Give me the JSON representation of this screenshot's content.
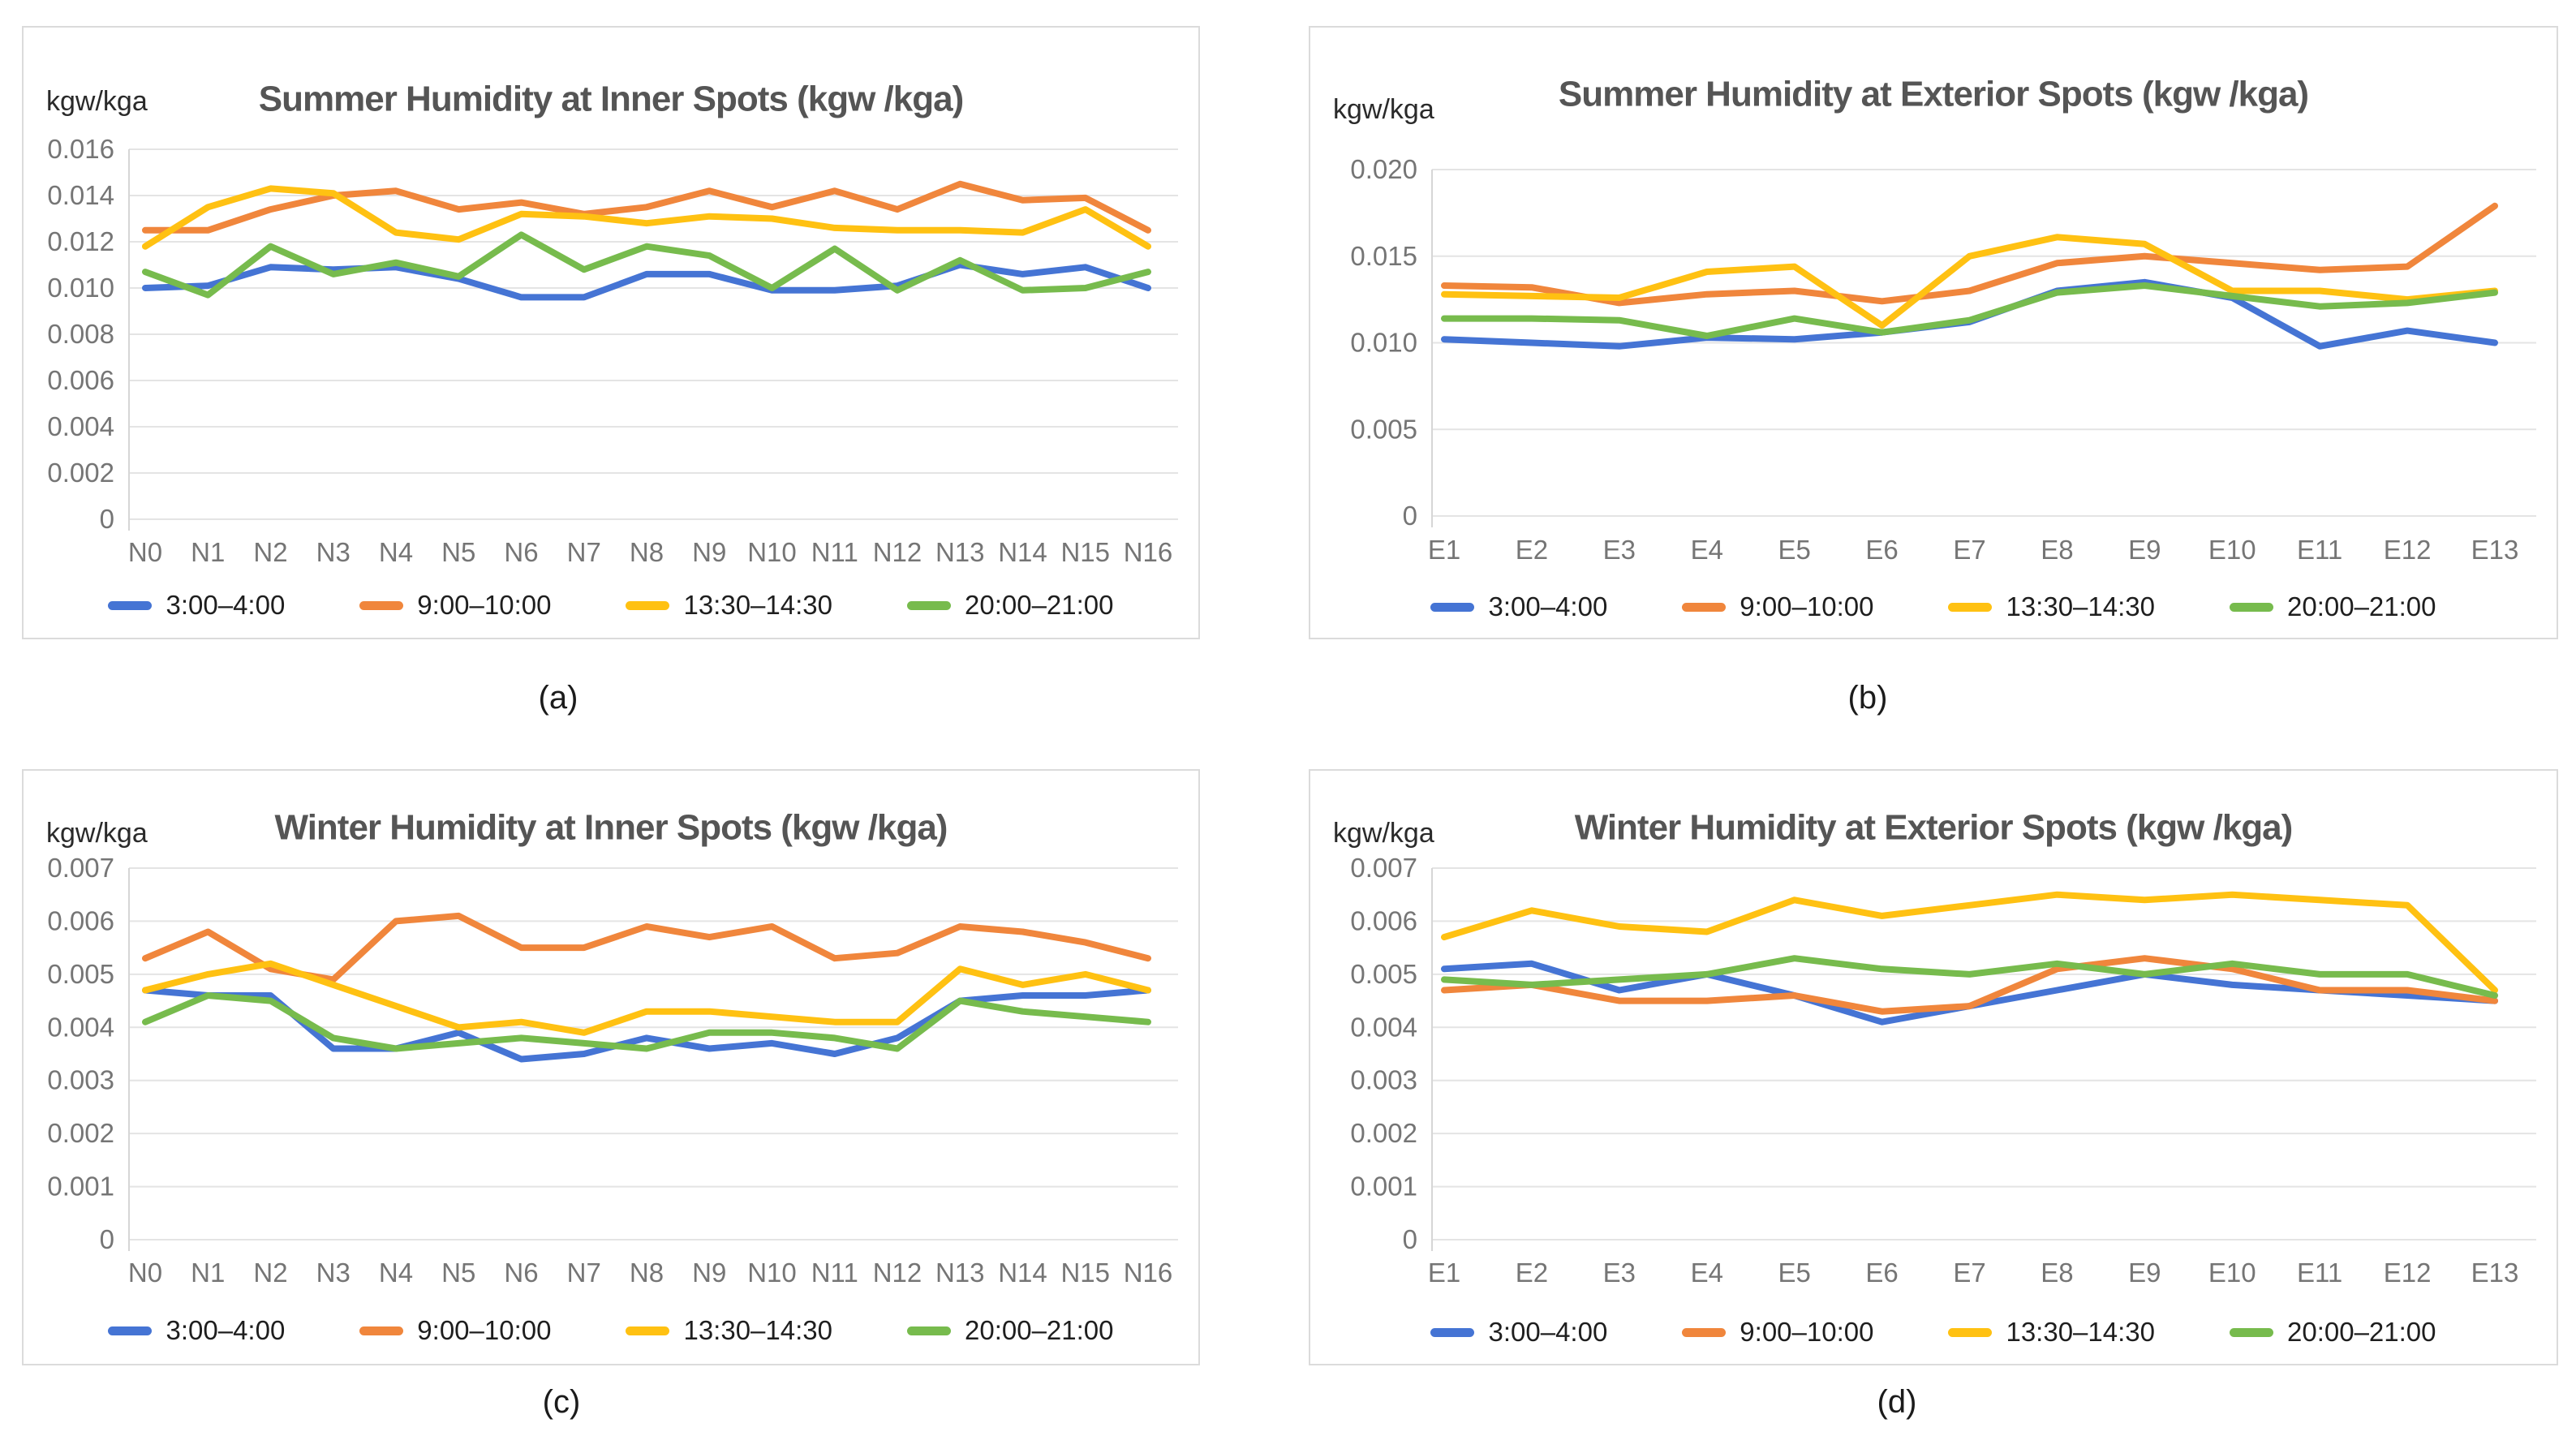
{
  "page": {
    "background": "#ffffff"
  },
  "palette": {
    "blue": "#4574D4",
    "orange": "#F0863C",
    "yellow": "#FFC112",
    "green": "#77BB4D",
    "gridline": "#E4E4E4",
    "axis_line": "#D6D6D6",
    "tick_text": "#757575",
    "title_text": "#555555",
    "unit_text": "#2A2A2A",
    "legend_text": "#1E1E1E",
    "panel_border": "#DBDBDB"
  },
  "captions": {
    "a": "(a)",
    "b": "(b)",
    "c": "(c)",
    "d": "(d)"
  },
  "legend_labels": [
    "3:00–4:00",
    "9:00–10:00",
    "13:30–14:30",
    "20:00–21:00"
  ],
  "chart_data": [
    {
      "id": "a",
      "type": "line",
      "title": "Summer Humidity at Inner Spots (kgw /kga)",
      "unit_label": "kgw/kga",
      "xlabel": "",
      "ylabel": "kgw/kga",
      "ylim": [
        0,
        0.016
      ],
      "ystep": 0.002,
      "grid": true,
      "legend_position": "bottom",
      "categories": [
        "N0",
        "N1",
        "N2",
        "N3",
        "N4",
        "N5",
        "N6",
        "N7",
        "N8",
        "N9",
        "N10",
        "N11",
        "N12",
        "N13",
        "N14",
        "N15",
        "N16"
      ],
      "series": [
        {
          "name": "3:00–4:00",
          "color_key": "blue",
          "values": [
            0.01,
            0.0101,
            0.0109,
            0.0108,
            0.0109,
            0.0104,
            0.0096,
            0.0096,
            0.0106,
            0.0106,
            0.0099,
            0.0099,
            0.0101,
            0.011,
            0.0106,
            0.0109,
            0.01
          ]
        },
        {
          "name": "9:00–10:00",
          "color_key": "orange",
          "values": [
            0.0125,
            0.0125,
            0.0134,
            0.014,
            0.0142,
            0.0134,
            0.0137,
            0.0132,
            0.0135,
            0.0142,
            0.0135,
            0.0142,
            0.0134,
            0.0145,
            0.0138,
            0.0139,
            0.0125
          ]
        },
        {
          "name": "13:30–14:30",
          "color_key": "yellow",
          "values": [
            0.0118,
            0.0135,
            0.0143,
            0.0141,
            0.0124,
            0.0121,
            0.0132,
            0.0131,
            0.0128,
            0.0131,
            0.013,
            0.0126,
            0.0125,
            0.0125,
            0.0124,
            0.0134,
            0.0118
          ]
        },
        {
          "name": "20:00–21:00",
          "color_key": "green",
          "values": [
            0.0107,
            0.0097,
            0.0118,
            0.0106,
            0.0111,
            0.0105,
            0.0123,
            0.0108,
            0.0118,
            0.0114,
            0.01,
            0.0117,
            0.0099,
            0.0112,
            0.0099,
            0.01,
            0.0107
          ]
        }
      ]
    },
    {
      "id": "b",
      "type": "line",
      "title": "Summer Humidity at Exterior Spots (kgw /kga)",
      "unit_label": "kgw/kga",
      "xlabel": "",
      "ylabel": "kgw/kga",
      "ylim": [
        0,
        0.02
      ],
      "ystep": 0.005,
      "grid": true,
      "legend_position": "bottom",
      "categories": [
        "E1",
        "E2",
        "E3",
        "E4",
        "E5",
        "E6",
        "E7",
        "E8",
        "E9",
        "E10",
        "E11",
        "E12",
        "E13"
      ],
      "series": [
        {
          "name": "3:00–4:00",
          "color_key": "blue",
          "values": [
            0.0102,
            0.01,
            0.0098,
            0.0103,
            0.0102,
            0.0106,
            0.0112,
            0.013,
            0.0135,
            0.0126,
            0.0098,
            0.0107,
            0.01
          ]
        },
        {
          "name": "9:00–10:00",
          "color_key": "orange",
          "values": [
            0.0133,
            0.0132,
            0.0123,
            0.0128,
            0.013,
            0.0124,
            0.013,
            0.0146,
            0.015,
            0.0146,
            0.0142,
            0.0144,
            0.0179
          ]
        },
        {
          "name": "13:30–14:30",
          "color_key": "yellow",
          "values": [
            0.0128,
            0.0127,
            0.0126,
            0.0141,
            0.0144,
            0.011,
            0.015,
            0.0161,
            0.0157,
            0.013,
            0.013,
            0.0125,
            0.013
          ]
        },
        {
          "name": "20:00–21:00",
          "color_key": "green",
          "values": [
            0.0114,
            0.0114,
            0.0113,
            0.0104,
            0.0114,
            0.0106,
            0.0113,
            0.0129,
            0.0133,
            0.0127,
            0.0121,
            0.0123,
            0.0129
          ]
        }
      ]
    },
    {
      "id": "c",
      "type": "line",
      "title": "Winter Humidity at Inner Spots (kgw /kga)",
      "unit_label": "kgw/kga",
      "xlabel": "",
      "ylabel": "kgw/kga",
      "ylim": [
        0,
        0.007
      ],
      "ystep": 0.001,
      "grid": true,
      "legend_position": "bottom",
      "categories": [
        "N0",
        "N1",
        "N2",
        "N3",
        "N4",
        "N5",
        "N6",
        "N7",
        "N8",
        "N9",
        "N10",
        "N11",
        "N12",
        "N13",
        "N14",
        "N15",
        "N16"
      ],
      "series": [
        {
          "name": "3:00–4:00",
          "color_key": "blue",
          "values": [
            0.0047,
            0.0046,
            0.0046,
            0.0036,
            0.0036,
            0.0039,
            0.0034,
            0.0035,
            0.0038,
            0.0036,
            0.0037,
            0.0035,
            0.0038,
            0.0045,
            0.0046,
            0.0046,
            0.0047
          ]
        },
        {
          "name": "9:00–10:00",
          "color_key": "orange",
          "values": [
            0.0053,
            0.0058,
            0.0051,
            0.0049,
            0.006,
            0.0061,
            0.0055,
            0.0055,
            0.0059,
            0.0057,
            0.0059,
            0.0053,
            0.0054,
            0.0059,
            0.0058,
            0.0056,
            0.0053
          ]
        },
        {
          "name": "13:30–14:30",
          "color_key": "yellow",
          "values": [
            0.0047,
            0.005,
            0.0052,
            0.0048,
            0.0044,
            0.004,
            0.0041,
            0.0039,
            0.0043,
            0.0043,
            0.0042,
            0.0041,
            0.0041,
            0.0051,
            0.0048,
            0.005,
            0.0047
          ]
        },
        {
          "name": "20:00–21:00",
          "color_key": "green",
          "values": [
            0.0041,
            0.0046,
            0.0045,
            0.0038,
            0.0036,
            0.0037,
            0.0038,
            0.0037,
            0.0036,
            0.0039,
            0.0039,
            0.0038,
            0.0036,
            0.0045,
            0.0043,
            0.0042,
            0.0041
          ]
        }
      ]
    },
    {
      "id": "d",
      "type": "line",
      "title": "Winter Humidity at Exterior Spots (kgw /kga)",
      "unit_label": "kgw/kga",
      "xlabel": "",
      "ylabel": "kgw/kga",
      "ylim": [
        0,
        0.007
      ],
      "ystep": 0.001,
      "grid": true,
      "legend_position": "bottom",
      "categories": [
        "E1",
        "E2",
        "E3",
        "E4",
        "E5",
        "E6",
        "E7",
        "E8",
        "E9",
        "E10",
        "E11",
        "E12",
        "E13"
      ],
      "series": [
        {
          "name": "3:00–4:00",
          "color_key": "blue",
          "values": [
            0.0051,
            0.0052,
            0.0047,
            0.005,
            0.0046,
            0.0041,
            0.0044,
            0.0047,
            0.005,
            0.0048,
            0.0047,
            0.0046,
            0.0045
          ]
        },
        {
          "name": "9:00–10:00",
          "color_key": "orange",
          "values": [
            0.0047,
            0.0048,
            0.0045,
            0.0045,
            0.0046,
            0.0043,
            0.0044,
            0.0051,
            0.0053,
            0.0051,
            0.0047,
            0.0047,
            0.0045
          ]
        },
        {
          "name": "13:30–14:30",
          "color_key": "yellow",
          "values": [
            0.0057,
            0.0062,
            0.0059,
            0.0058,
            0.0064,
            0.0061,
            0.0063,
            0.0065,
            0.0064,
            0.0065,
            0.0064,
            0.0063,
            0.0047
          ]
        },
        {
          "name": "20:00–21:00",
          "color_key": "green",
          "values": [
            0.0049,
            0.0048,
            0.0049,
            0.005,
            0.0053,
            0.0051,
            0.005,
            0.0052,
            0.005,
            0.0052,
            0.005,
            0.005,
            0.0046
          ]
        }
      ]
    }
  ]
}
